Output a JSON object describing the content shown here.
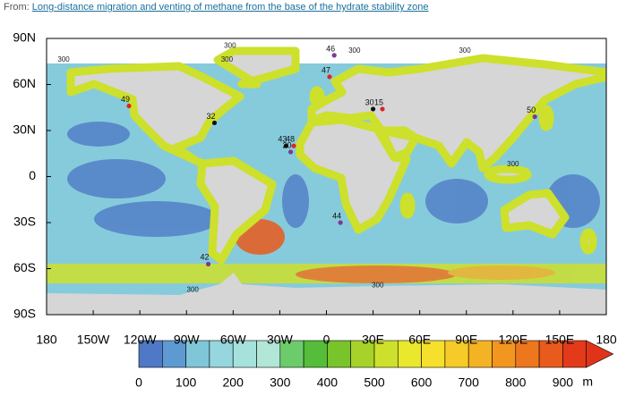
{
  "header": {
    "prefix": "From:",
    "link": "Long-distance migration and venting of methane from the base of the hydrate stability zone"
  },
  "map": {
    "lon_ticks": [
      {
        "value": -180,
        "label": "180"
      },
      {
        "value": -150,
        "label": "150W"
      },
      {
        "value": -120,
        "label": "120W"
      },
      {
        "value": -90,
        "label": "90W"
      },
      {
        "value": -60,
        "label": "60W"
      },
      {
        "value": -30,
        "label": "30W"
      },
      0,
      {
        "value": 30,
        "label": "30E"
      },
      {
        "value": 60,
        "label": "60E"
      },
      {
        "value": 90,
        "label": "90E"
      },
      {
        "value": 120,
        "label": "120E"
      },
      {
        "value": 150,
        "label": "150E"
      },
      {
        "value": 180,
        "label": "180"
      }
    ],
    "lat_ticks": [
      {
        "value": 90,
        "label": "90N"
      },
      {
        "value": 60,
        "label": "60N"
      },
      {
        "value": 30,
        "label": "30N"
      },
      0,
      {
        "value": -30,
        "label": "30S"
      },
      {
        "value": -60,
        "label": "60S"
      },
      {
        "value": -90,
        "label": "90S"
      }
    ],
    "sites": [
      {
        "label": "46",
        "lon": 5,
        "lat": 79,
        "color": "#7a3b8f"
      },
      {
        "label": "47",
        "lon": 2,
        "lat": 65,
        "color": "#d9262b"
      },
      {
        "label": "30",
        "lon": 30,
        "lat": 44,
        "color": "#111111"
      },
      {
        "label": "15",
        "lon": 36,
        "lat": 44,
        "color": "#d9262b"
      },
      {
        "label": "49",
        "lon": -127,
        "lat": 46,
        "color": "#d9262b"
      },
      {
        "label": "32",
        "lon": -72,
        "lat": 35,
        "color": "#111111"
      },
      {
        "label": "43",
        "lon": -26,
        "lat": 20,
        "color": "#111111"
      },
      {
        "label": "48",
        "lon": -21,
        "lat": 20,
        "color": "#d9262b"
      },
      {
        "label": "20",
        "lon": -23,
        "lat": 16,
        "color": "#7a3b8f"
      },
      {
        "label": "44",
        "lon": 9,
        "lat": -30,
        "color": "#7a3b8f"
      },
      {
        "label": "50",
        "lon": 134,
        "lat": 39,
        "color": "#7a3b8f"
      },
      {
        "label": "42",
        "lon": -76,
        "lat": -57,
        "color": "#7a3b8f"
      }
    ],
    "contour_labels": [
      {
        "label": "300",
        "lon": -62,
        "lat": 85
      },
      {
        "label": "300",
        "lon": -169,
        "lat": 76
      },
      {
        "label": "300",
        "lon": -64,
        "lat": 76
      },
      {
        "label": "300",
        "lon": 18,
        "lat": 82
      },
      {
        "label": "300",
        "lon": 89,
        "lat": 82
      },
      {
        "label": "300",
        "lon": 120,
        "lat": 8
      },
      {
        "label": "300",
        "lon": -86,
        "lat": -74
      },
      {
        "label": "300",
        "lon": 33,
        "lat": -71
      }
    ]
  },
  "colorbar": {
    "ticks": [
      0,
      100,
      200,
      300,
      400,
      500,
      600,
      700,
      800,
      900
    ],
    "unit": "m",
    "colors": [
      "#4f79c6",
      "#5e9ad2",
      "#7fc6d9",
      "#95d6df",
      "#a6e2dc",
      "#b2e6d6",
      "#6ccc6b",
      "#55bd3a",
      "#79c42a",
      "#a6d22a",
      "#cde02c",
      "#e9e82c",
      "#f6e02b",
      "#f6ca28",
      "#f4b324",
      "#f29620",
      "#ee761d",
      "#e95b1c",
      "#e33a1a",
      "#e03418"
    ]
  }
}
